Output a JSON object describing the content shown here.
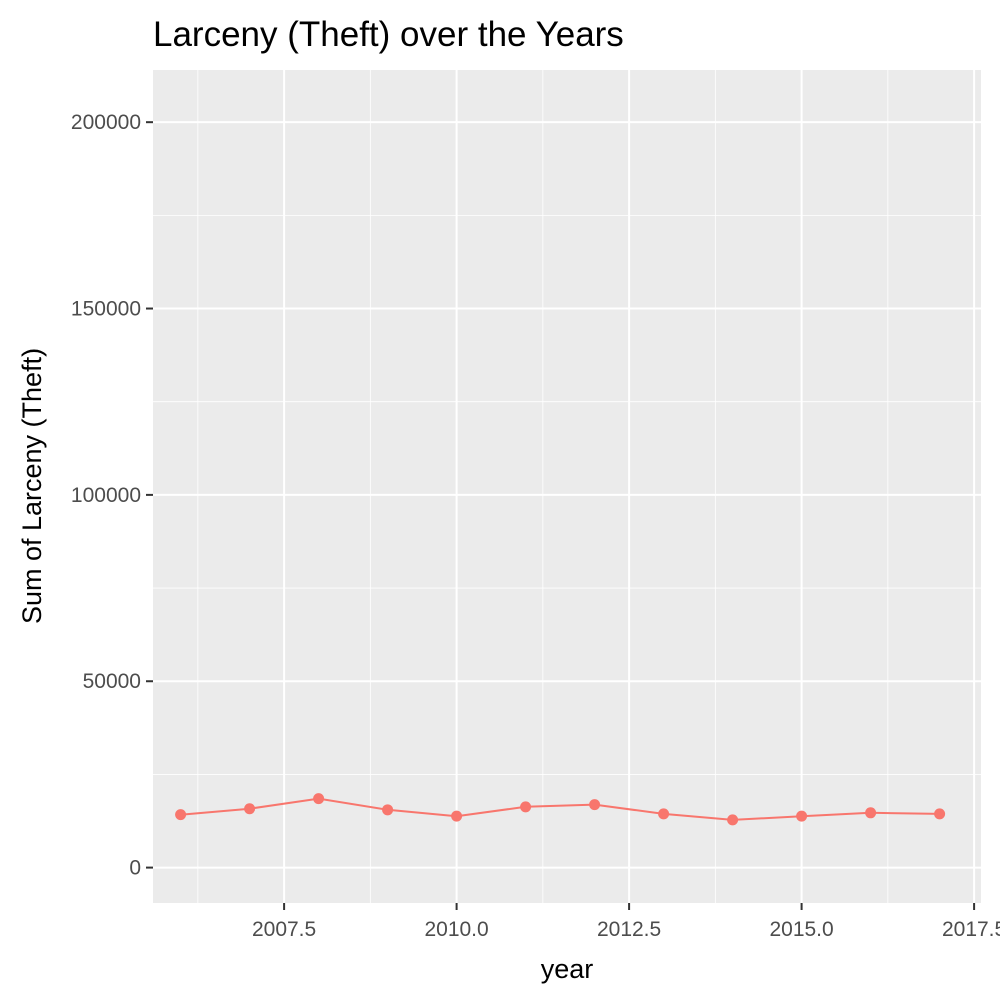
{
  "chart_data": {
    "type": "line",
    "title": "Larceny (Theft) over the Years",
    "xlabel": "year",
    "ylabel": "Sum of Larceny (Theft)",
    "x": [
      2006,
      2007,
      2008,
      2009,
      2010,
      2011,
      2012,
      2013,
      2014,
      2015,
      2016,
      2017
    ],
    "series": [
      {
        "values": [
          14200,
          15800,
          18500,
          15500,
          13800,
          16300,
          16900,
          14400,
          12800,
          13800,
          14700,
          14400
        ],
        "color": "#F8766D"
      }
    ],
    "xlim": [
      2005.6,
      2017.6
    ],
    "ylim": [
      -9500,
      214000
    ],
    "x_ticks": [
      2007.5,
      2010.0,
      2012.5,
      2015.0,
      2017.5
    ],
    "x_tick_labels": [
      "2007.5",
      "2010.0",
      "2012.5",
      "2015.0",
      "2017.5"
    ],
    "y_ticks": [
      0,
      50000,
      100000,
      150000,
      200000
    ],
    "y_tick_labels": [
      "0",
      "50000",
      "100000",
      "150000",
      "200000"
    ],
    "grid": true,
    "panel_background": "#EBEBEB",
    "grid_color": "#FFFFFF"
  }
}
